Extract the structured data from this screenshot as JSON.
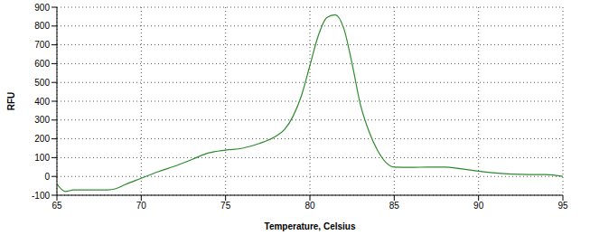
{
  "chart_data": {
    "type": "line",
    "xlabel": "Temperature, Celsius",
    "ylabel": "RFU",
    "x": [
      65,
      65.5,
      66,
      67,
      68,
      68.5,
      69,
      70,
      71,
      72,
      73,
      74,
      75,
      76,
      77,
      78,
      78.5,
      79,
      79.5,
      80,
      80.5,
      81,
      81.5,
      82,
      82.5,
      83,
      83.5,
      84,
      84.5,
      85,
      86,
      87,
      88,
      89,
      90,
      91,
      92,
      93,
      94,
      95
    ],
    "values": [
      -40,
      -80,
      -72,
      -72,
      -72,
      -65,
      -45,
      -10,
      25,
      55,
      90,
      125,
      140,
      150,
      175,
      215,
      250,
      320,
      430,
      590,
      750,
      845,
      860,
      790,
      600,
      380,
      240,
      140,
      75,
      50,
      48,
      50,
      50,
      40,
      28,
      18,
      12,
      10,
      10,
      0
    ],
    "color": "#2e8b2e",
    "xlim": [
      65,
      95
    ],
    "ylim": [
      -100,
      900
    ],
    "xticks": [
      65,
      70,
      75,
      80,
      85,
      90,
      95
    ],
    "yticks": [
      -100,
      0,
      100,
      200,
      300,
      400,
      500,
      600,
      700,
      800,
      900
    ],
    "grid": true
  }
}
